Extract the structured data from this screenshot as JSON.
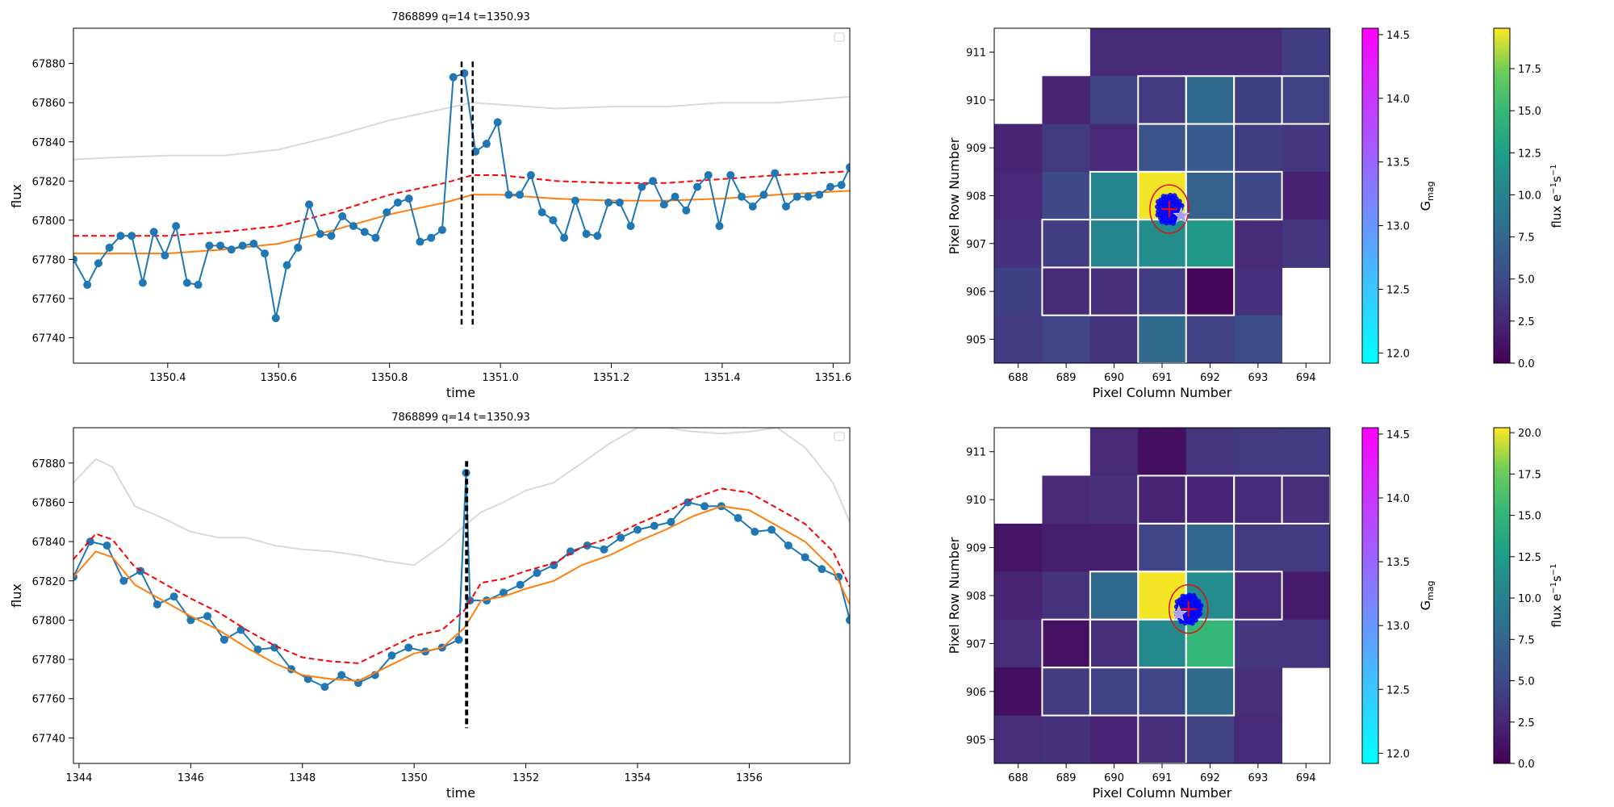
{
  "chart_data": [
    {
      "type": "line",
      "title": "7868899 q=14 t=1350.93",
      "xlabel": "time",
      "ylabel": "flux",
      "xlim": [
        1350.23,
        1351.63
      ],
      "ylim": [
        67727,
        67898
      ],
      "xticks": [
        1350.4,
        1350.6,
        1350.8,
        1351.0,
        1351.2,
        1351.4,
        1351.6
      ],
      "yticks": [
        67740,
        67760,
        67780,
        67800,
        67820,
        67840,
        67860,
        67880
      ],
      "vlines": [
        1350.93,
        1350.95
      ],
      "vline_range": [
        67745,
        67881
      ],
      "legend": "top-right (empty)",
      "series": [
        {
          "role": "flux",
          "color": "#1f77b4",
          "x": [
            1350.23,
            1350.255,
            1350.275,
            1350.295,
            1350.315,
            1350.335,
            1350.355,
            1350.375,
            1350.395,
            1350.415,
            1350.435,
            1350.455,
            1350.475,
            1350.495,
            1350.515,
            1350.535,
            1350.555,
            1350.575,
            1350.595,
            1350.615,
            1350.635,
            1350.655,
            1350.675,
            1350.695,
            1350.715,
            1350.735,
            1350.755,
            1350.775,
            1350.795,
            1350.815,
            1350.835,
            1350.855,
            1350.875,
            1350.895,
            1350.915,
            1350.935,
            1350.955,
            1350.975,
            1350.995,
            1351.015,
            1351.035,
            1351.055,
            1351.075,
            1351.095,
            1351.115,
            1351.135,
            1351.155,
            1351.175,
            1351.195,
            1351.215,
            1351.235,
            1351.255,
            1351.275,
            1351.295,
            1351.315,
            1351.335,
            1351.355,
            1351.375,
            1351.395,
            1351.415,
            1351.435,
            1351.455,
            1351.475,
            1351.495,
            1351.515,
            1351.535,
            1351.555,
            1351.575,
            1351.595,
            1351.615,
            1351.63
          ],
          "y": [
            67780,
            67767,
            67778,
            67786,
            67792,
            67792,
            67768,
            67794,
            67782,
            67797,
            67768,
            67767,
            67787,
            67787,
            67785,
            67787,
            67788,
            67783,
            67750,
            67777,
            67786,
            67808,
            67793,
            67792,
            67802,
            67797,
            67794,
            67791,
            67804,
            67809,
            67811,
            67789,
            67791,
            67795,
            67873,
            67875,
            67835,
            67839,
            67850,
            67813,
            67813,
            67823,
            67804,
            67800,
            67791,
            67810,
            67793,
            67792,
            67809,
            67809,
            67797,
            67817,
            67820,
            67808,
            67812,
            67805,
            67817,
            67823,
            67797,
            67823,
            67812,
            67807,
            67813,
            67824,
            67807,
            67812,
            67812,
            67813,
            67817,
            67818,
            67827
          ]
        },
        {
          "role": "model",
          "color": "#ff7f0e",
          "x": [
            1350.23,
            1350.3,
            1350.4,
            1350.5,
            1350.6,
            1350.7,
            1350.8,
            1350.9,
            1350.95,
            1351.0,
            1351.1,
            1351.2,
            1351.3,
            1351.4,
            1351.5,
            1351.63
          ],
          "y": [
            67783,
            67783,
            67783,
            67785,
            67788,
            67795,
            67803,
            67809,
            67813,
            67813,
            67811,
            67810,
            67810,
            67811,
            67813,
            67815
          ]
        },
        {
          "role": "threshold",
          "color": "#ff0000",
          "dashed": true,
          "x": [
            1350.23,
            1350.3,
            1350.4,
            1350.5,
            1350.6,
            1350.7,
            1350.8,
            1350.9,
            1350.95,
            1351.0,
            1351.1,
            1351.2,
            1351.3,
            1351.4,
            1351.5,
            1351.63
          ],
          "y": [
            67792,
            67792,
            67792,
            67794,
            67797,
            67804,
            67813,
            67819,
            67823,
            67823,
            67820,
            67819,
            67819,
            67821,
            67823,
            67825
          ]
        },
        {
          "role": "background",
          "color": "#d9d9d9",
          "x": [
            1350.23,
            1350.3,
            1350.4,
            1350.5,
            1350.6,
            1350.7,
            1350.8,
            1350.9,
            1350.95,
            1351.0,
            1351.1,
            1351.2,
            1351.3,
            1351.4,
            1351.5,
            1351.63
          ],
          "y": [
            67831,
            67832,
            67833,
            67833,
            67836,
            67843,
            67851,
            67857,
            67860,
            67859,
            67857,
            67858,
            67858,
            67860,
            67860,
            67863
          ]
        }
      ]
    },
    {
      "type": "heatmap",
      "xlabel": "Pixel Column Number",
      "ylabel": "Pixel Row Number",
      "x_ticks": [
        "688",
        "689",
        "690",
        "691",
        "692",
        "693",
        "694"
      ],
      "y_ticks": [
        "911",
        "910",
        "909",
        "908",
        "907",
        "906",
        "905"
      ],
      "grid_values": [
        [
          null,
          null,
          2.4,
          2.4,
          2.4,
          2.4,
          3.6
        ],
        [
          null,
          2.0,
          4.0,
          3.4,
          6.6,
          3.7,
          3.9
        ],
        [
          2.0,
          3.3,
          2.2,
          5.0,
          5.7,
          3.6,
          3.1
        ],
        [
          2.2,
          4.3,
          9.0,
          19.5,
          6.2,
          4.3,
          1.9
        ],
        [
          2.8,
          3.5,
          9.0,
          9.7,
          10.5,
          2.4,
          3.1
        ],
        [
          3.7,
          2.4,
          2.7,
          3.5,
          0.3,
          2.8,
          null
        ],
        [
          3.4,
          4.1,
          3.0,
          6.9,
          3.9,
          4.7,
          null
        ]
      ],
      "aperture": [
        [
          1,
          3
        ],
        [
          1,
          4
        ],
        [
          1,
          5
        ],
        [
          1,
          6
        ],
        [
          2,
          3
        ],
        [
          2,
          4
        ],
        [
          3,
          2
        ],
        [
          3,
          3
        ],
        [
          3,
          4
        ],
        [
          3,
          5
        ],
        [
          4,
          1
        ],
        [
          4,
          2
        ],
        [
          4,
          3
        ],
        [
          4,
          4
        ],
        [
          5,
          1
        ],
        [
          5,
          2
        ],
        [
          5,
          3
        ],
        [
          5,
          4
        ],
        [
          6,
          3
        ]
      ],
      "target_ellipse_center": [
        691.15,
        907.72
      ],
      "stars": [
        [
          691.4,
          907.58
        ]
      ],
      "colorbar_gmag": {
        "label": "G",
        "label_subscript": "mag",
        "ticks": [
          "12.0",
          "12.5",
          "13.0",
          "13.5",
          "14.0",
          "14.5"
        ],
        "range": [
          11.92,
          14.55
        ]
      },
      "colorbar_flux": {
        "label": "flux e",
        "label_exp": "−1",
        "label_mid": "s",
        "label_exp2": "−1",
        "ticks": [
          "0.0",
          "2.5",
          "5.0",
          "7.5",
          "10.0",
          "12.5",
          "15.0",
          "17.5"
        ],
        "range": [
          0,
          19.9
        ]
      }
    },
    {
      "type": "line",
      "title": "7868899 q=14 t=1350.93",
      "xlabel": "time",
      "ylabel": "flux",
      "xlim": [
        1343.9,
        1357.8
      ],
      "ylim": [
        67727,
        67898
      ],
      "xticks": [
        1344,
        1346,
        1348,
        1350,
        1352,
        1354,
        1356
      ],
      "yticks": [
        67740,
        67760,
        67780,
        67800,
        67820,
        67840,
        67860,
        67880
      ],
      "vlines": [
        1350.93,
        1350.95
      ],
      "vline_range": [
        67745,
        67881
      ],
      "legend": "top-right (empty)",
      "series": [
        {
          "role": "flux",
          "color": "#1f77b4",
          "x": [
            1343.9,
            1344.2,
            1344.5,
            1344.8,
            1345.1,
            1345.4,
            1345.7,
            1346.0,
            1346.3,
            1346.6,
            1346.9,
            1347.2,
            1347.5,
            1347.8,
            1348.1,
            1348.4,
            1348.7,
            1349.0,
            1349.3,
            1349.6,
            1349.9,
            1350.2,
            1350.5,
            1350.8,
            1350.93,
            1351.0,
            1351.3,
            1351.6,
            1351.9,
            1352.2,
            1352.5,
            1352.8,
            1353.1,
            1353.4,
            1353.7,
            1354.0,
            1354.3,
            1354.6,
            1354.9,
            1355.2,
            1355.5,
            1355.8,
            1356.1,
            1356.4,
            1356.7,
            1357.0,
            1357.3,
            1357.6,
            1357.8
          ],
          "y": [
            67822,
            67840,
            67838,
            67820,
            67825,
            67808,
            67812,
            67800,
            67802,
            67790,
            67795,
            67785,
            67786,
            67775,
            67770,
            67766,
            67772,
            67768,
            67772,
            67782,
            67786,
            67784,
            67786,
            67790,
            67875,
            67810,
            67810,
            67814,
            67818,
            67824,
            67828,
            67835,
            67838,
            67836,
            67842,
            67846,
            67848,
            67850,
            67860,
            67858,
            67858,
            67852,
            67845,
            67846,
            67838,
            67832,
            67826,
            67822,
            67800
          ]
        },
        {
          "role": "model",
          "color": "#ff7f0e",
          "x": [
            1343.9,
            1344.3,
            1344.6,
            1345.0,
            1345.5,
            1346.0,
            1346.5,
            1347.0,
            1347.5,
            1348.0,
            1348.5,
            1349.0,
            1349.5,
            1350.0,
            1350.5,
            1350.9,
            1351.2,
            1351.6,
            1352.0,
            1352.5,
            1353.0,
            1353.5,
            1354.0,
            1354.5,
            1355.0,
            1355.5,
            1356.0,
            1356.5,
            1357.0,
            1357.5,
            1357.8
          ],
          "y": [
            67822,
            67835,
            67832,
            67818,
            67810,
            67802,
            67795,
            67786,
            67778,
            67772,
            67770,
            67769,
            67776,
            67783,
            67786,
            67796,
            67810,
            67812,
            67816,
            67820,
            67828,
            67833,
            67840,
            67846,
            67853,
            67858,
            67856,
            67848,
            67840,
            67826,
            67808
          ]
        },
        {
          "role": "threshold",
          "color": "#ff0000",
          "dashed": true,
          "x": [
            1343.9,
            1344.3,
            1344.6,
            1345.0,
            1345.5,
            1346.0,
            1346.5,
            1347.0,
            1347.5,
            1348.0,
            1348.5,
            1349.0,
            1349.5,
            1350.0,
            1350.5,
            1350.9,
            1351.2,
            1351.6,
            1352.0,
            1352.5,
            1353.0,
            1353.5,
            1354.0,
            1354.5,
            1355.0,
            1355.5,
            1356.0,
            1356.5,
            1357.0,
            1357.5,
            1357.8
          ],
          "y": [
            67831,
            67844,
            67841,
            67827,
            67819,
            67811,
            67804,
            67795,
            67787,
            67781,
            67779,
            67778,
            67785,
            67792,
            67795,
            67805,
            67819,
            67821,
            67825,
            67829,
            67837,
            67842,
            67849,
            67855,
            67862,
            67867,
            67865,
            67857,
            67849,
            67835,
            67817
          ]
        },
        {
          "role": "background",
          "color": "#d9d9d9",
          "x": [
            1343.9,
            1344.3,
            1344.6,
            1345.0,
            1345.5,
            1346.0,
            1346.5,
            1347.0,
            1347.5,
            1348.0,
            1348.5,
            1349.0,
            1349.5,
            1350.0,
            1350.5,
            1350.9,
            1351.2,
            1351.6,
            1352.0,
            1352.5,
            1353.0,
            1353.5,
            1354.0,
            1354.5,
            1355.0,
            1355.5,
            1356.0,
            1356.5,
            1357.0,
            1357.5,
            1357.8
          ],
          "y": [
            67870,
            67882,
            67878,
            67858,
            67852,
            67845,
            67842,
            67842,
            67838,
            67836,
            67835,
            67833,
            67830,
            67828,
            67838,
            67848,
            67855,
            67860,
            67866,
            67870,
            67880,
            67890,
            67898,
            67898,
            67896,
            67895,
            67896,
            67898,
            67888,
            67870,
            67850
          ]
        }
      ]
    },
    {
      "type": "heatmap",
      "xlabel": "Pixel Column Number",
      "ylabel": "Pixel Row Number",
      "x_ticks": [
        "688",
        "689",
        "690",
        "691",
        "692",
        "693",
        "694"
      ],
      "y_ticks": [
        "911",
        "910",
        "909",
        "908",
        "907",
        "906",
        "905"
      ],
      "grid_values": [
        [
          null,
          null,
          2.3,
          0.8,
          3.1,
          3.4,
          3.5
        ],
        [
          null,
          2.3,
          2.8,
          2.0,
          2.1,
          2.4,
          2.7
        ],
        [
          1.1,
          1.6,
          1.7,
          4.2,
          6.7,
          3.4,
          3.5
        ],
        [
          2.0,
          3.0,
          6.8,
          20.0,
          9.8,
          2.4,
          1.5
        ],
        [
          2.5,
          0.9,
          2.8,
          9.5,
          13.5,
          3.2,
          3.1
        ],
        [
          0.8,
          3.5,
          4.1,
          4.2,
          7.0,
          2.8,
          null
        ],
        [
          2.5,
          2.9,
          2.1,
          2.7,
          3.9,
          2.4,
          null
        ]
      ],
      "aperture": [
        [
          1,
          3
        ],
        [
          1,
          4
        ],
        [
          1,
          5
        ],
        [
          1,
          6
        ],
        [
          2,
          3
        ],
        [
          2,
          4
        ],
        [
          3,
          2
        ],
        [
          3,
          3
        ],
        [
          3,
          4
        ],
        [
          3,
          5
        ],
        [
          4,
          1
        ],
        [
          4,
          2
        ],
        [
          4,
          3
        ],
        [
          4,
          4
        ],
        [
          5,
          1
        ],
        [
          5,
          2
        ],
        [
          5,
          3
        ],
        [
          5,
          4
        ],
        [
          6,
          3
        ]
      ],
      "target_ellipse_center": [
        691.55,
        907.72
      ],
      "stars": [
        [
          691.35,
          907.62
        ]
      ],
      "colorbar_gmag": {
        "label": "G",
        "label_subscript": "mag",
        "ticks": [
          "12.0",
          "12.5",
          "13.0",
          "13.5",
          "14.0",
          "14.5"
        ],
        "range": [
          11.92,
          14.55
        ]
      },
      "colorbar_flux": {
        "label": "flux e",
        "label_exp": "−1",
        "label_mid": "s",
        "label_exp2": "−1",
        "ticks": [
          "0.0",
          "2.5",
          "5.0",
          "7.5",
          "10.0",
          "12.5",
          "15.0",
          "17.5",
          "20.0"
        ],
        "range": [
          0,
          20.3
        ]
      }
    }
  ]
}
